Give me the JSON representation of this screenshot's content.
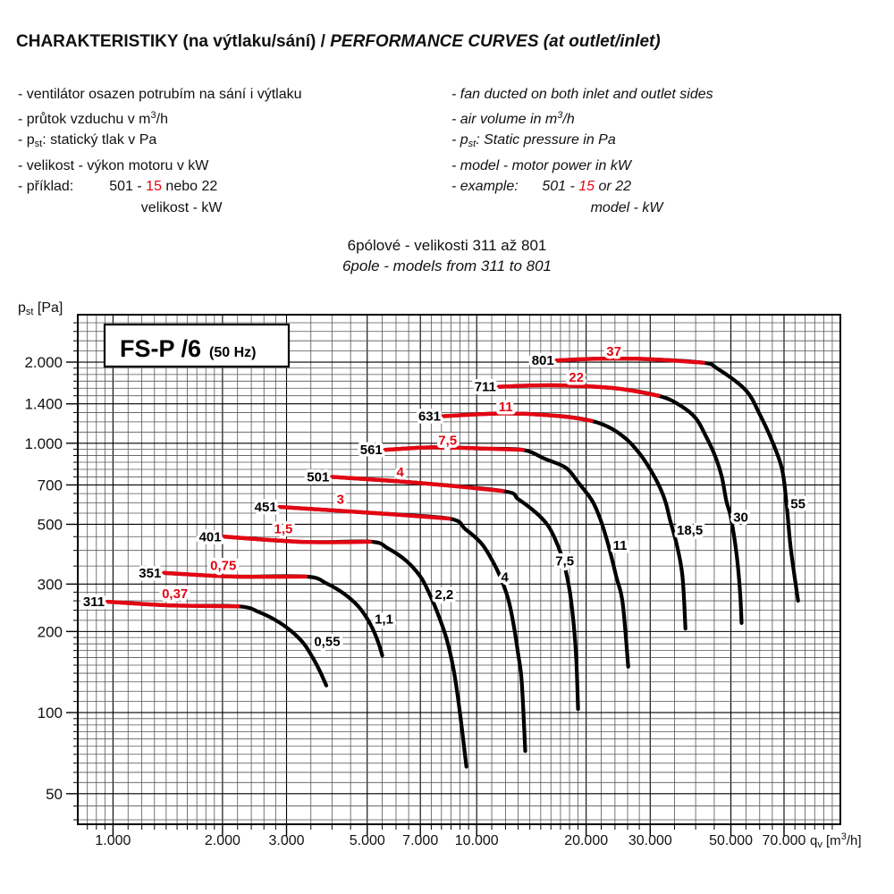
{
  "header": {
    "title_cz": "CHARAKTERISTIKY (na výtlaku/sání) / ",
    "title_en": "PERFORMANCE CURVES (at outlet/inlet)"
  },
  "notes_cz": [
    [
      {
        "t": "- ventilátor osazen potrubím na sání i výtlaku"
      }
    ],
    [
      {
        "t": "- průtok vzduchu v m"
      },
      {
        "t": "3",
        "style": "sup"
      },
      {
        "t": "/h"
      }
    ],
    [
      {
        "t": "- p"
      },
      {
        "t": "st",
        "style": "sub"
      },
      {
        "t": ": statický tlak v Pa"
      }
    ],
    [
      {
        "t": "- velikost - výkon motoru v kW"
      }
    ],
    [
      {
        "t": "- příklad:         501 - "
      },
      {
        "t": "15",
        "style": "red"
      },
      {
        "t": " nebo 22"
      }
    ],
    [
      {
        "t": "                               velikost - kW"
      }
    ]
  ],
  "notes_en": [
    [
      {
        "t": "- fan ducted on both inlet and outlet sides"
      }
    ],
    [
      {
        "t": "- air volume in m"
      },
      {
        "t": "3",
        "style": "sup"
      },
      {
        "t": "/h"
      }
    ],
    [
      {
        "t": "- p"
      },
      {
        "t": "st",
        "style": "sub"
      },
      {
        "t": ": Static pressure in Pa"
      }
    ],
    [
      {
        "t": "- model - motor power in kW"
      }
    ],
    [
      {
        "t": "- example:      501 - "
      },
      {
        "t": "15",
        "style": "red"
      },
      {
        "t": " or 22"
      }
    ],
    [
      {
        "t": "                                   model - kW"
      }
    ]
  ],
  "subtitle": {
    "line1": "6pólové - velikosti 311 až 801",
    "line2": "6pole - models from 311 to 801"
  },
  "chart_data": {
    "type": "line",
    "title": "FS-P /6",
    "title_suffix": "(50 Hz)",
    "colors": {
      "curve": "#000000",
      "power_red": "#e30613",
      "grid": "#555555"
    },
    "x_axis": {
      "scale": "log",
      "min": 800,
      "max": 100000,
      "label_parts": [
        {
          "t": "q"
        },
        {
          "t": "v",
          "style": "sub"
        },
        {
          "t": " [m"
        },
        {
          "t": "3",
          "style": "sup"
        },
        {
          "t": "/h]"
        }
      ],
      "ticks": [
        {
          "v": 1000,
          "label": "1.000"
        },
        {
          "v": 2000,
          "label": "2.000"
        },
        {
          "v": 3000,
          "label": "3.000"
        },
        {
          "v": 5000,
          "label": "5.000"
        },
        {
          "v": 7000,
          "label": "7.000"
        },
        {
          "v": 10000,
          "label": "10.000"
        },
        {
          "v": 20000,
          "label": "20.000"
        },
        {
          "v": 30000,
          "label": "30.000"
        },
        {
          "v": 50000,
          "label": "50.000"
        },
        {
          "v": 70000,
          "label": "70.000"
        }
      ]
    },
    "y_axis": {
      "scale": "log",
      "min": 38.5,
      "max": 3000,
      "label_parts": [
        {
          "t": "p"
        },
        {
          "t": "st",
          "style": "sub"
        },
        {
          "t": " [Pa]"
        }
      ],
      "ticks": [
        {
          "v": 2000,
          "label": "2.000"
        },
        {
          "v": 1400,
          "label": "1.400"
        },
        {
          "v": 1000,
          "label": "1.000"
        },
        {
          "v": 700,
          "label": "700"
        },
        {
          "v": 500,
          "label": "500"
        },
        {
          "v": 300,
          "label": "300"
        },
        {
          "v": 200,
          "label": "200"
        },
        {
          "v": 100,
          "label": "100"
        },
        {
          "v": 50,
          "label": "50"
        }
      ]
    },
    "grid_multiples": [
      1,
      1.1,
      1.2,
      1.3,
      1.4,
      1.5,
      1.6,
      1.7,
      1.8,
      1.9,
      2,
      2.2,
      2.4,
      2.6,
      2.8,
      3,
      3.5,
      4,
      4.5,
      5,
      5.5,
      6,
      6.5,
      7,
      7.5,
      8,
      8.5,
      9,
      9.5
    ],
    "series": [
      {
        "model": "311",
        "red_power": "0,37",
        "black_power": "0,55",
        "red": [
          [
            965,
            258
          ],
          [
            1430,
            250
          ],
          [
            2210,
            248
          ]
        ],
        "black": [
          [
            2520,
            236
          ],
          [
            2820,
            219
          ],
          [
            3100,
            200
          ],
          [
            3350,
            180
          ],
          [
            3540,
            160
          ],
          [
            3700,
            143
          ],
          [
            3860,
            126
          ]
        ],
        "red_label_at": [
          1480,
          276
        ],
        "black_label_at": [
          3880,
          184
        ]
      },
      {
        "model": "351",
        "red_power": "0,75",
        "black_power": "1,1",
        "red": [
          [
            1380,
            330
          ],
          [
            2130,
            320
          ],
          [
            3390,
            320
          ]
        ],
        "black": [
          [
            3860,
            302
          ],
          [
            4320,
            276
          ],
          [
            4700,
            250
          ],
          [
            4970,
            226
          ],
          [
            5200,
            202
          ],
          [
            5380,
            180
          ],
          [
            5500,
            163
          ]
        ],
        "red_label_at": [
          2010,
          352
        ],
        "black_label_at": [
          5560,
          222
        ]
      },
      {
        "model": "401",
        "red_power": "1,5",
        "black_power": "2,2",
        "red": [
          [
            2020,
            450
          ],
          [
            3350,
            430
          ],
          [
            5100,
            431
          ]
        ],
        "black": [
          [
            5700,
            407
          ],
          [
            6400,
            366
          ],
          [
            7000,
            320
          ],
          [
            7400,
            278
          ],
          [
            7800,
            235
          ],
          [
            8270,
            187
          ],
          [
            8650,
            143
          ],
          [
            8950,
            105
          ],
          [
            9370,
            63
          ]
        ],
        "red_label_at": [
          2940,
          482
        ],
        "black_label_at": [
          8140,
          274
        ]
      },
      {
        "model": "451",
        "red_power": "3",
        "black_power": "4",
        "red": [
          [
            2870,
            580
          ],
          [
            5260,
            550
          ],
          [
            8400,
            525
          ]
        ],
        "black": [
          [
            9300,
            480
          ],
          [
            10300,
            425
          ],
          [
            11000,
            370
          ],
          [
            11600,
            320
          ],
          [
            12200,
            265
          ],
          [
            12650,
            210
          ],
          [
            13000,
            165
          ],
          [
            13300,
            130
          ],
          [
            13600,
            72
          ]
        ],
        "red_label_at": [
          4220,
          620
        ],
        "black_label_at": [
          11950,
          319
        ]
      },
      {
        "model": "501",
        "red_power": "4",
        "black_power": "7,5",
        "red": [
          [
            4000,
            750
          ],
          [
            6700,
            715
          ],
          [
            11800,
            665
          ]
        ],
        "black": [
          [
            13000,
            620
          ],
          [
            14600,
            550
          ],
          [
            15700,
            495
          ],
          [
            16500,
            435
          ],
          [
            17300,
            365
          ],
          [
            18000,
            285
          ],
          [
            18500,
            210
          ],
          [
            18800,
            155
          ],
          [
            19000,
            103
          ]
        ],
        "red_label_at": [
          6160,
          781
        ],
        "black_label_at": [
          17460,
          366
        ]
      },
      {
        "model": "561",
        "red_power": "7,5",
        "black_power": "11",
        "red": [
          [
            5600,
            945
          ],
          [
            7500,
            965
          ],
          [
            10500,
            955
          ],
          [
            13400,
            945
          ]
        ],
        "black": [
          [
            15400,
            875
          ],
          [
            17600,
            810
          ],
          [
            19100,
            710
          ],
          [
            20800,
            610
          ],
          [
            21900,
            520
          ],
          [
            23000,
            420
          ],
          [
            24200,
            320
          ],
          [
            25200,
            255
          ],
          [
            26100,
            148
          ]
        ],
        "red_label_at": [
          8320,
          1027
        ],
        "black_label_at": [
          24790,
          417
        ]
      },
      {
        "model": "631",
        "red_power": "11",
        "black_power": "18,5",
        "red": [
          [
            8100,
            1260
          ],
          [
            12000,
            1290
          ],
          [
            17000,
            1260
          ],
          [
            20700,
            1210
          ]
        ],
        "black": [
          [
            23300,
            1140
          ],
          [
            25700,
            1040
          ],
          [
            27800,
            930
          ],
          [
            29500,
            830
          ],
          [
            31500,
            710
          ],
          [
            33000,
            610
          ],
          [
            34000,
            520
          ],
          [
            35500,
            420
          ],
          [
            36800,
            320
          ],
          [
            37500,
            205
          ]
        ],
        "red_label_at": [
          12020,
          1363
        ],
        "black_label_at": [
          38550,
          475
        ]
      },
      {
        "model": "711",
        "red_power": "22",
        "black_power": "30",
        "red": [
          [
            11500,
            1620
          ],
          [
            16000,
            1640
          ],
          [
            24000,
            1600
          ],
          [
            31600,
            1500
          ]
        ],
        "black": [
          [
            36000,
            1390
          ],
          [
            40000,
            1240
          ],
          [
            42700,
            1060
          ],
          [
            45200,
            900
          ],
          [
            47200,
            750
          ],
          [
            48600,
            610
          ],
          [
            50000,
            530
          ],
          [
            51800,
            390
          ],
          [
            53000,
            280
          ],
          [
            53500,
            215
          ]
        ],
        "red_label_at": [
          18790,
          1754
        ],
        "black_label_at": [
          53220,
          532
        ]
      },
      {
        "model": "801",
        "red_power": "37",
        "black_power": "55",
        "red": [
          [
            16600,
            2030
          ],
          [
            22000,
            2060
          ],
          [
            30000,
            2050
          ],
          [
            42000,
            1990
          ]
        ],
        "black": [
          [
            46000,
            1890
          ],
          [
            55000,
            1570
          ],
          [
            60000,
            1280
          ],
          [
            64500,
            1040
          ],
          [
            69000,
            810
          ],
          [
            71000,
            610
          ],
          [
            73000,
            410
          ],
          [
            76500,
            260
          ]
        ],
        "red_label_at": [
          23830,
          2193
        ],
        "black_label_at": [
          76460,
          597
        ]
      }
    ]
  }
}
